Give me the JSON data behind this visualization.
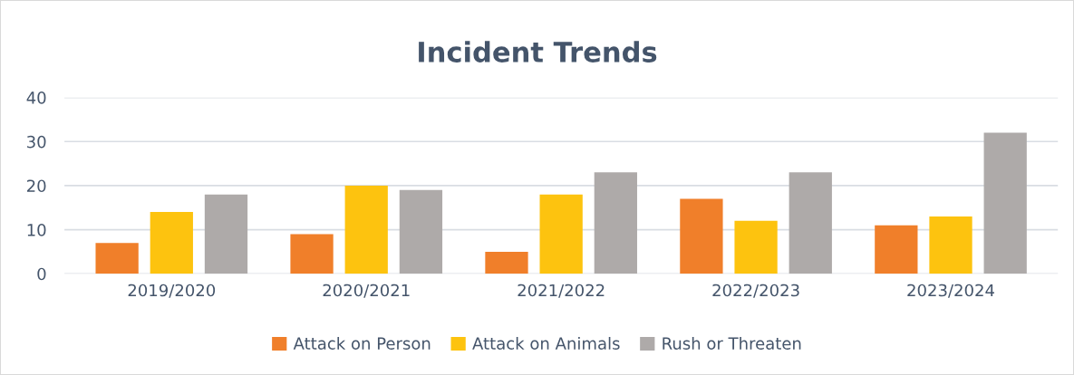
{
  "chart_data": {
    "type": "bar",
    "title": "Incident Trends",
    "categories": [
      "2019/2020",
      "2020/2021",
      "2021/2022",
      "2022/2023",
      "2023/2024"
    ],
    "series": [
      {
        "name": "Attack on Person",
        "color": "#f07f2a",
        "values": [
          7,
          9,
          5,
          17,
          11
        ]
      },
      {
        "name": "Attack on Animals",
        "color": "#fdc30f",
        "values": [
          14,
          20,
          18,
          12,
          13
        ]
      },
      {
        "name": "Rush or Threaten",
        "color": "#aeaaa9",
        "values": [
          18,
          19,
          23,
          23,
          32
        ]
      }
    ],
    "ylim": [
      0,
      40
    ],
    "yticks": [
      0,
      10,
      20,
      30,
      40
    ],
    "grid": "y",
    "legend": "bottom"
  }
}
